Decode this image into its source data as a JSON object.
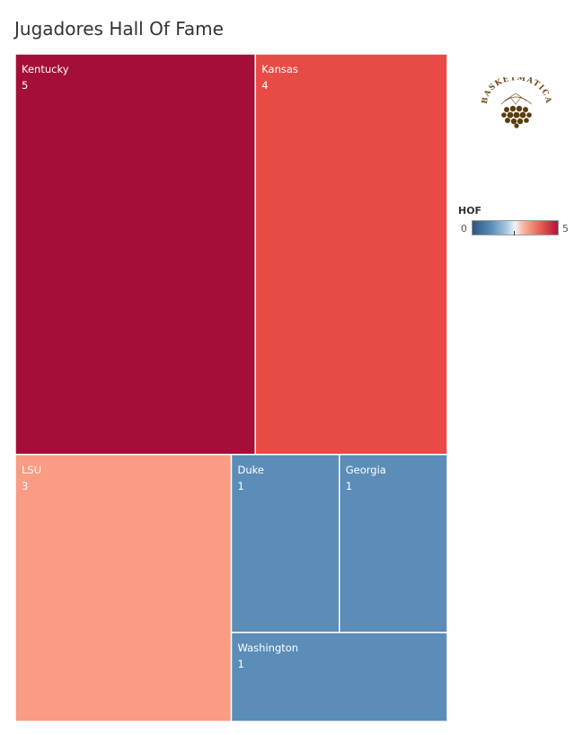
{
  "title": "Jugadores Hall Of Fame",
  "legend": {
    "title": "HOF",
    "min": "0",
    "max": "5"
  },
  "logo": {
    "text": "BASKETMÁTICA"
  },
  "colors": {
    "scale_low": "#5b8db8",
    "scale_mid": "#f9a089",
    "scale_high": "#a50e38",
    "kansas": "#e84a45",
    "label_text": "#ffffff",
    "logo": "#6b4a12"
  },
  "chart_data": {
    "type": "treemap",
    "title": "Jugadores Hall Of Fame",
    "measure": "HOF",
    "color_range": [
      0,
      5
    ],
    "items": [
      {
        "label": "Kentucky",
        "value": 5,
        "color": "#a50e38"
      },
      {
        "label": "Kansas",
        "value": 4,
        "color": "#e84a45"
      },
      {
        "label": "LSU",
        "value": 3,
        "color": "#fa9b83"
      },
      {
        "label": "Duke",
        "value": 1,
        "color": "#5b8db8"
      },
      {
        "label": "Georgia",
        "value": 1,
        "color": "#5b8db8"
      },
      {
        "label": "Washington",
        "value": 1,
        "color": "#5b8db8"
      }
    ]
  }
}
